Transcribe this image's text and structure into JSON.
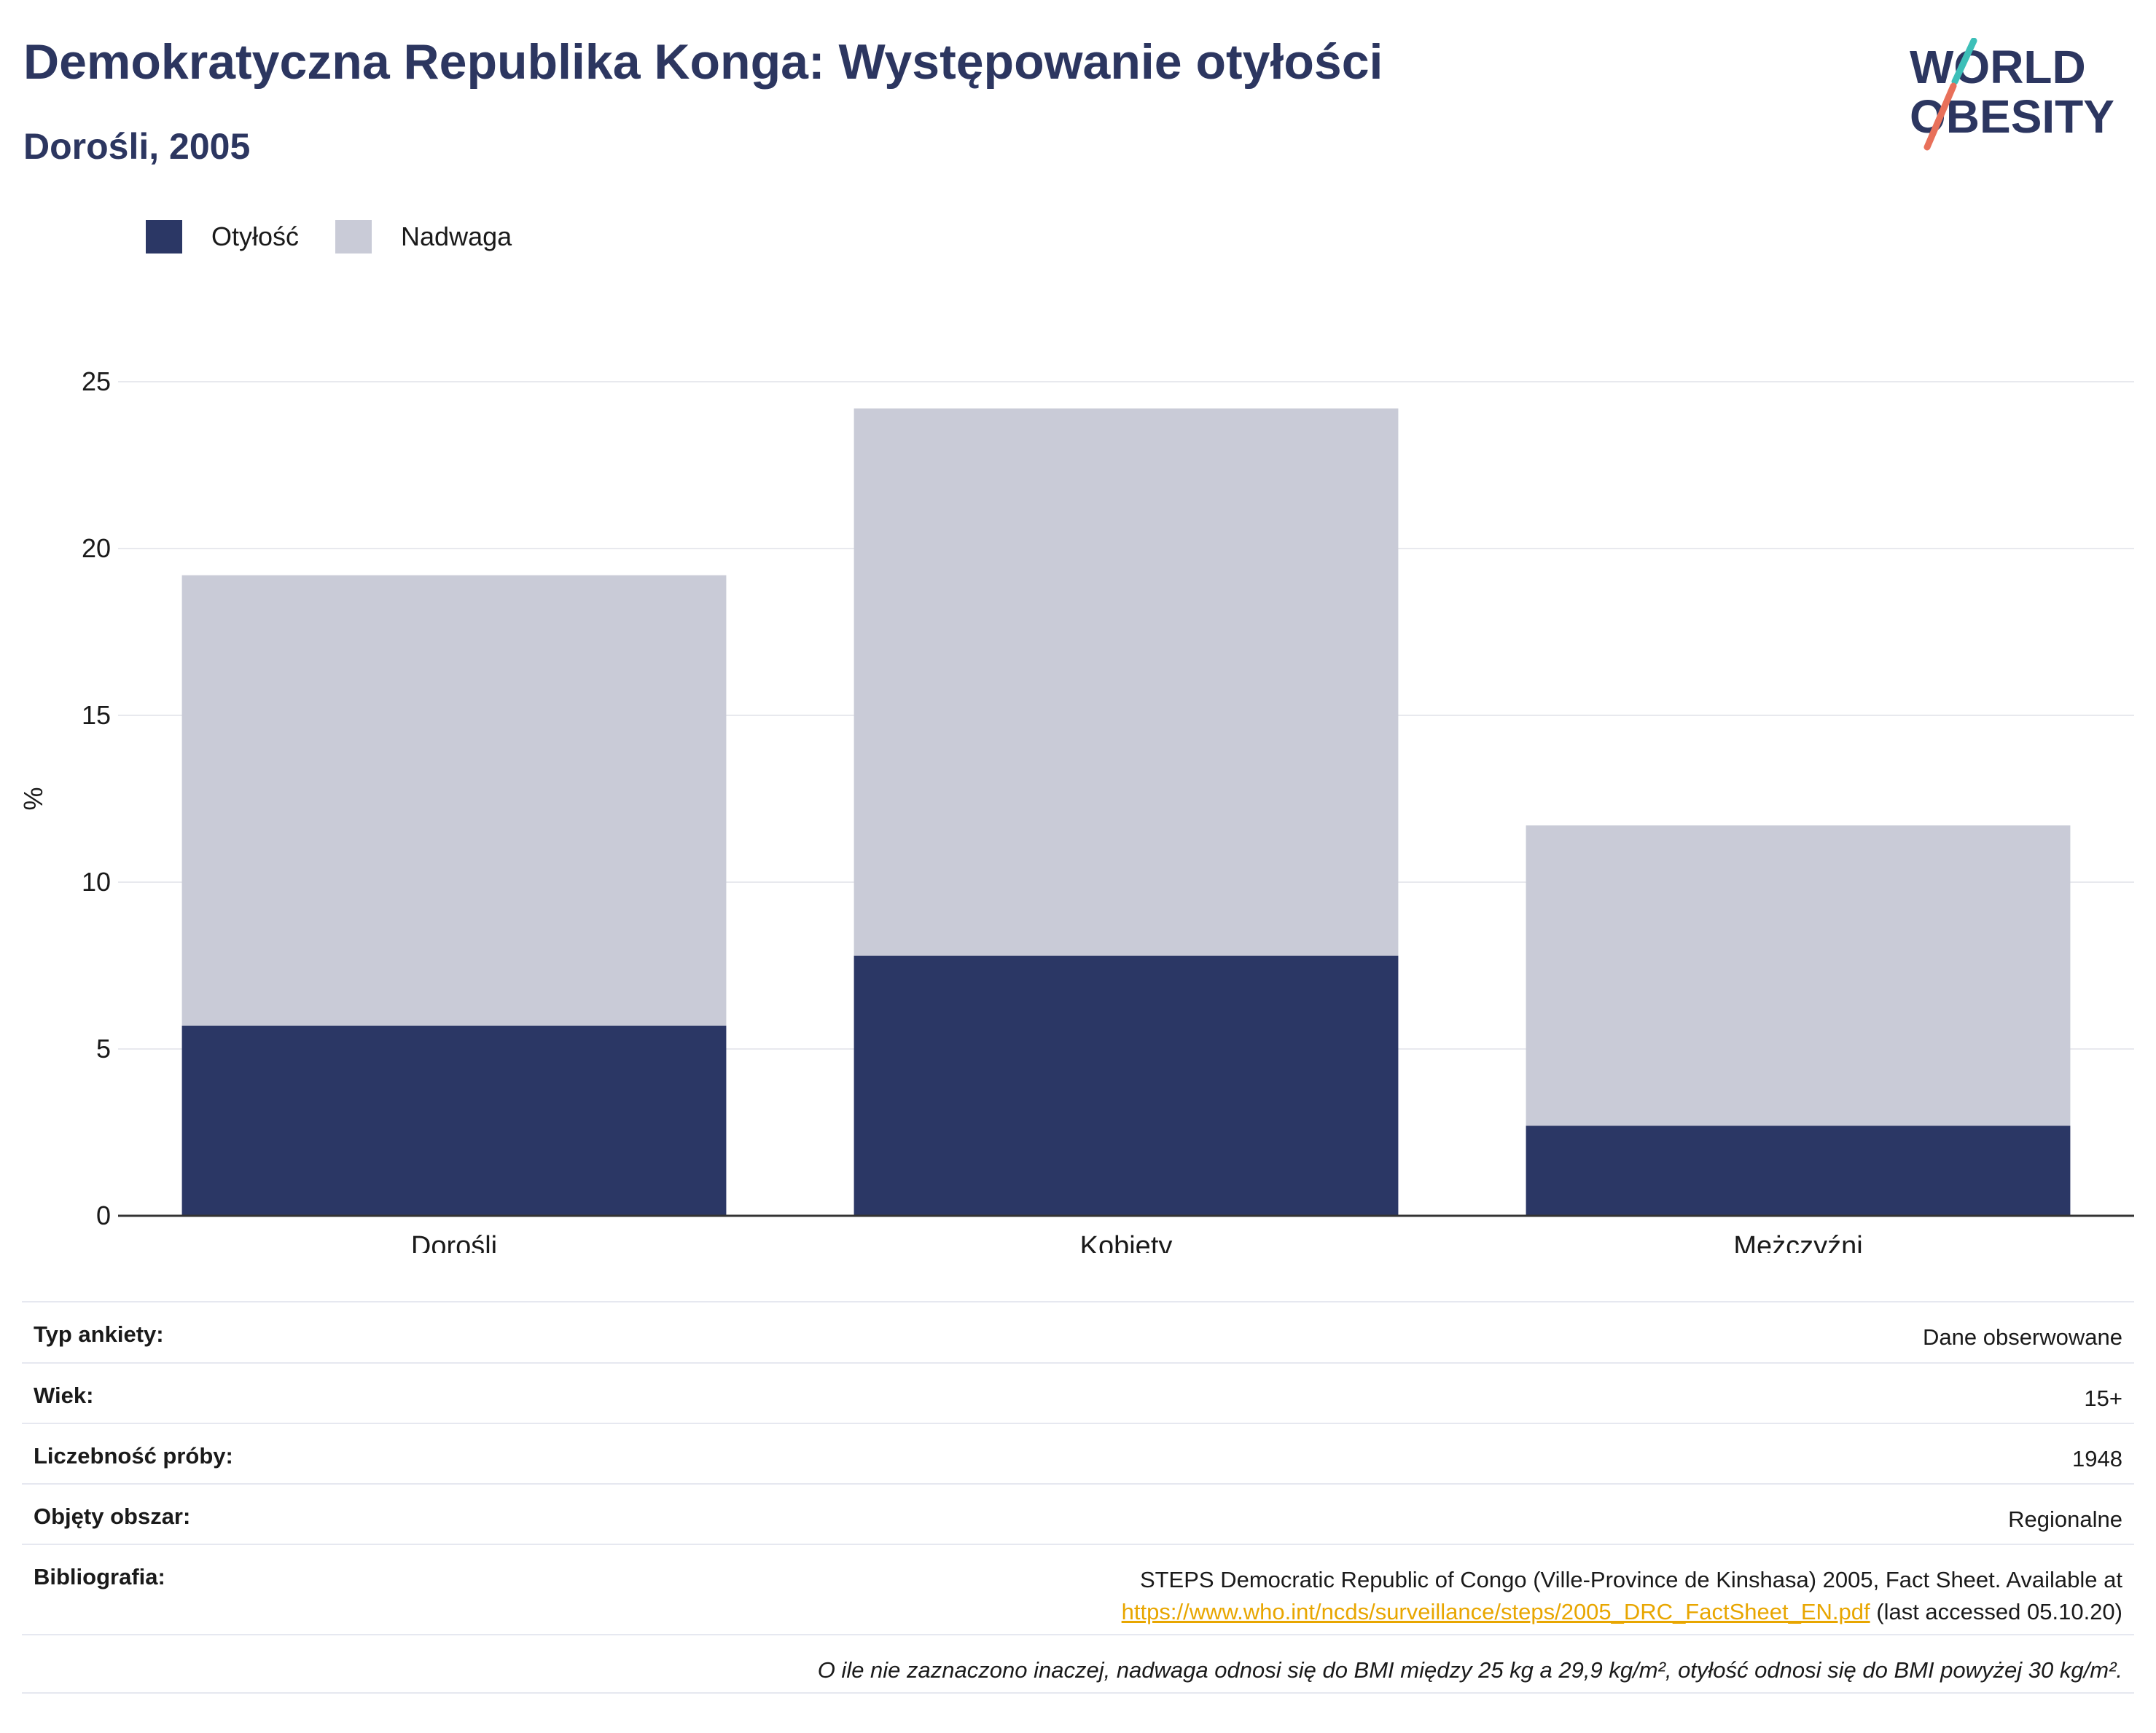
{
  "header": {
    "title": "Demokratyczna Republika Konga: Występowanie otyłości",
    "subtitle": "Dorośli, 2005",
    "logo_line1": "WORLD",
    "logo_line2": "OBESITY"
  },
  "legend": {
    "items": [
      {
        "label": "Otyłość",
        "color": "#2b3765"
      },
      {
        "label": "Nadwaga",
        "color": "#c9cbd7"
      }
    ]
  },
  "chart_data": {
    "type": "bar",
    "stacked": true,
    "categories": [
      "Dorośli",
      "Kobiety",
      "Mężczyźni"
    ],
    "series": [
      {
        "name": "Otyłość",
        "values": [
          5.7,
          7.8,
          2.7
        ],
        "color": "#2b3765"
      },
      {
        "name": "Nadwaga",
        "values": [
          13.5,
          16.4,
          9.0
        ],
        "color": "#c9cbd7"
      }
    ],
    "ylabel": "%",
    "xlabel": "",
    "ylim": [
      0,
      25
    ],
    "yticks": [
      0,
      5,
      10,
      15,
      20,
      25
    ],
    "grid": true,
    "legend_position": "top-left"
  },
  "info": {
    "survey_type_label": "Typ ankiety:",
    "survey_type_value": "Dane obserwowane",
    "age_label": "Wiek:",
    "age_value": "15+",
    "sample_label": "Liczebność próby:",
    "sample_value": "1948",
    "area_label": "Objęty obszar:",
    "area_value": "Regionalne",
    "biblio_label": "Bibliografia:",
    "biblio_line1": "STEPS Democratic Republic of Congo (Ville-Province de Kinshasa) 2005, Fact Sheet. Available at",
    "biblio_link": "https://www.who.int/ncds/surveillance/steps/2005_DRC_FactSheet_EN.pdf",
    "biblio_suffix": "(last accessed 05.10.20)",
    "note": "O ile nie zaznaczono inaczej, nadwaga odnosi się do BMI między 25 kg a 29,9 kg/m², otyłość odnosi się do BMI powyżej 30 kg/m²."
  }
}
